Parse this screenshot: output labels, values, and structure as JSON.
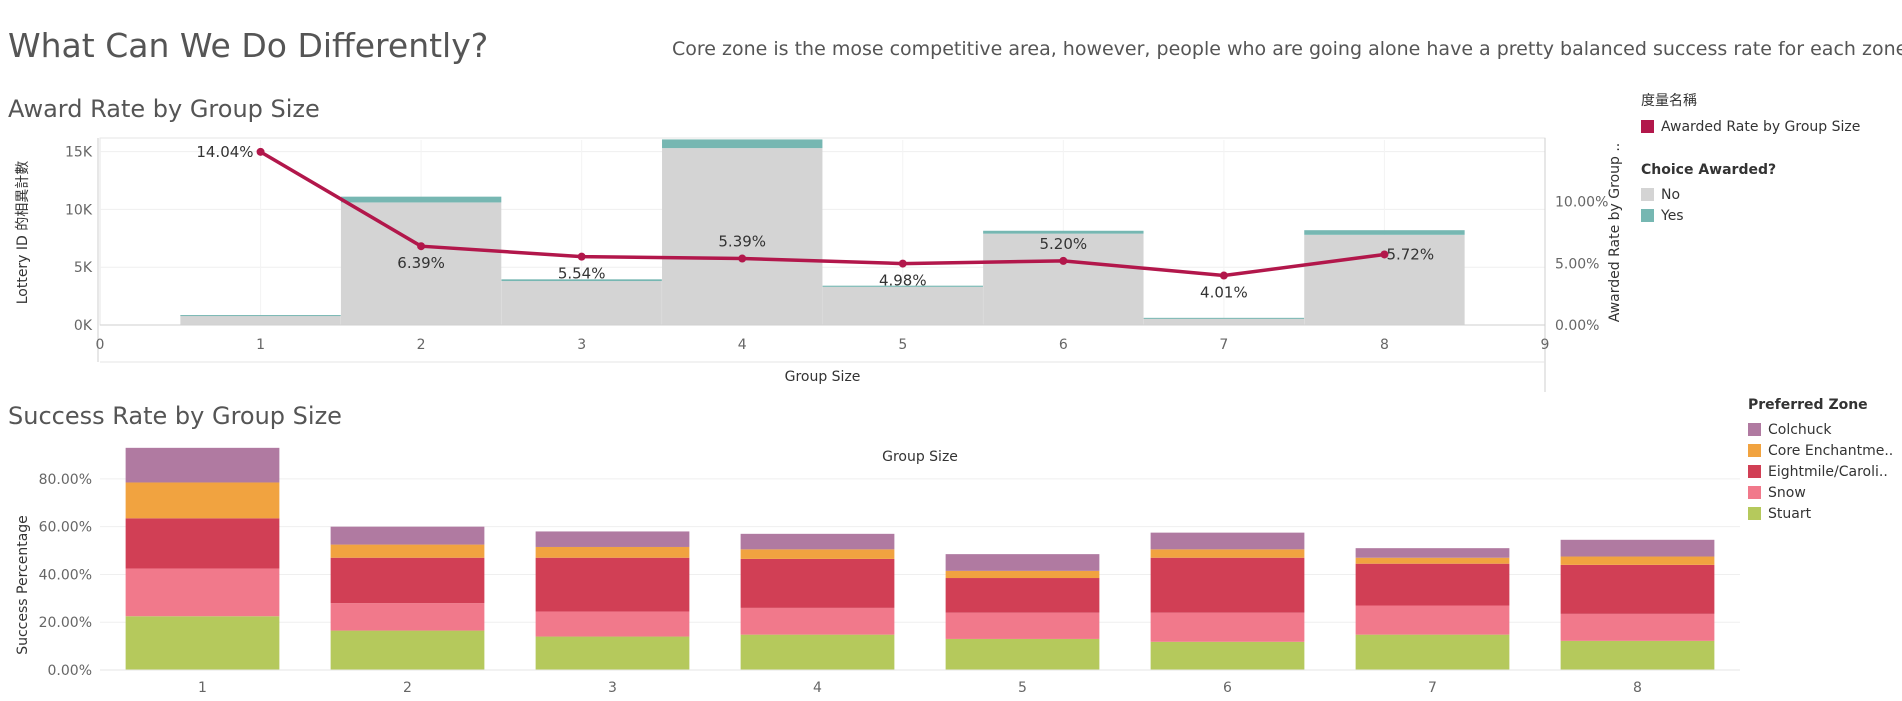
{
  "header": {
    "title": "What Can We Do Differently?",
    "subtitle": "Core zone is the mose competitive area, however, people who are going alone have a pretty balanced success rate for each zones."
  },
  "sections": {
    "award": "Award Rate by Group Size",
    "success": "Success Rate by Group Size"
  },
  "legends": {
    "measure": {
      "title": "度量名稱",
      "items": [
        {
          "label": "Awarded Rate by Group Size",
          "color": "#b2174b"
        }
      ]
    },
    "choice": {
      "title": "Choice Awarded?",
      "items": [
        {
          "label": "No",
          "color": "#d4d4d4"
        },
        {
          "label": "Yes",
          "color": "#76b7b2"
        }
      ]
    },
    "zone": {
      "title": "Preferred Zone",
      "items": [
        {
          "label": "Colchuck",
          "color": "#b07aa1"
        },
        {
          "label": "Core Enchantme..",
          "color": "#f1a340"
        },
        {
          "label": "Eightmile/Caroli..",
          "color": "#d13f55"
        },
        {
          "label": "Snow",
          "color": "#f1798b"
        },
        {
          "label": "Stuart",
          "color": "#b5c95c"
        }
      ]
    }
  },
  "chart_data": [
    {
      "type": "bar",
      "title": "Award Rate by Group Size",
      "xlabel": "Group Size",
      "ylabel": "Lottery ID 的相異計數",
      "ylabel_right": "Awarded Rate by Group ..",
      "x": [
        1,
        2,
        3,
        4,
        5,
        6,
        7,
        8
      ],
      "xlim": [
        0,
        9
      ],
      "x_ticks": [
        "0",
        "1",
        "2",
        "3",
        "4",
        "5",
        "6",
        "7",
        "8",
        "9"
      ],
      "ylim": [
        0,
        16000
      ],
      "y_ticks": [
        {
          "value": 0,
          "label": "0K"
        },
        {
          "value": 5000,
          "label": "5K"
        },
        {
          "value": 10000,
          "label": "10K"
        },
        {
          "value": 15000,
          "label": "15K"
        }
      ],
      "series": [
        {
          "name": "No",
          "color": "#d4d4d4",
          "values": [
            800,
            10600,
            3800,
            15300,
            3300,
            7900,
            600,
            7800
          ]
        },
        {
          "name": "Yes",
          "color": "#76b7b2",
          "values": [
            60,
            500,
            150,
            750,
            100,
            250,
            20,
            400
          ]
        }
      ],
      "line_series": {
        "name": "Awarded Rate by Group Size",
        "color": "#b2174b",
        "values": [
          14.04,
          6.39,
          5.54,
          5.39,
          4.98,
          5.2,
          4.01,
          5.72
        ],
        "labels": [
          "14.04%",
          "6.39%",
          "5.54%",
          "5.39%",
          "4.98%",
          "5.20%",
          "4.01%",
          "5.72%"
        ],
        "ylim": [
          0,
          15
        ],
        "y_ticks": [
          {
            "value": 0,
            "label": "0.00%"
          },
          {
            "value": 5,
            "label": "5.00%"
          },
          {
            "value": 10,
            "label": "10.00%"
          }
        ]
      },
      "grid": true
    },
    {
      "type": "bar",
      "stacked": true,
      "title": "Success Rate by Group Size",
      "xlabel": "Group Size",
      "ylabel": "Success Percentage",
      "categories": [
        "1",
        "2",
        "3",
        "4",
        "5",
        "6",
        "7",
        "8"
      ],
      "ylim": [
        0,
        90
      ],
      "y_ticks": [
        {
          "value": 0,
          "label": "0.00%"
        },
        {
          "value": 20,
          "label": "20.00%"
        },
        {
          "value": 40,
          "label": "40.00%"
        },
        {
          "value": 60,
          "label": "60.00%"
        },
        {
          "value": 80,
          "label": "80.00%"
        }
      ],
      "series": [
        {
          "name": "Stuart",
          "color": "#b5c95c",
          "values": [
            22.5,
            16.5,
            14.0,
            14.8,
            13.0,
            11.8,
            14.8,
            12.2
          ]
        },
        {
          "name": "Snow",
          "color": "#f1798b",
          "values": [
            20.0,
            11.5,
            10.5,
            11.2,
            11.0,
            12.2,
            12.2,
            11.3
          ]
        },
        {
          "name": "Eightmile/Caroli..",
          "color": "#d13f55",
          "values": [
            21.0,
            19.0,
            22.5,
            20.5,
            14.5,
            23.0,
            17.5,
            20.5
          ]
        },
        {
          "name": "Core Enchantme..",
          "color": "#f1a340",
          "values": [
            15.0,
            5.5,
            4.5,
            4.0,
            3.0,
            3.5,
            2.5,
            3.5
          ]
        },
        {
          "name": "Colchuck",
          "color": "#b07aa1",
          "values": [
            14.5,
            7.5,
            6.5,
            6.5,
            7.0,
            7.0,
            4.0,
            7.0
          ]
        }
      ],
      "grid": true
    }
  ]
}
